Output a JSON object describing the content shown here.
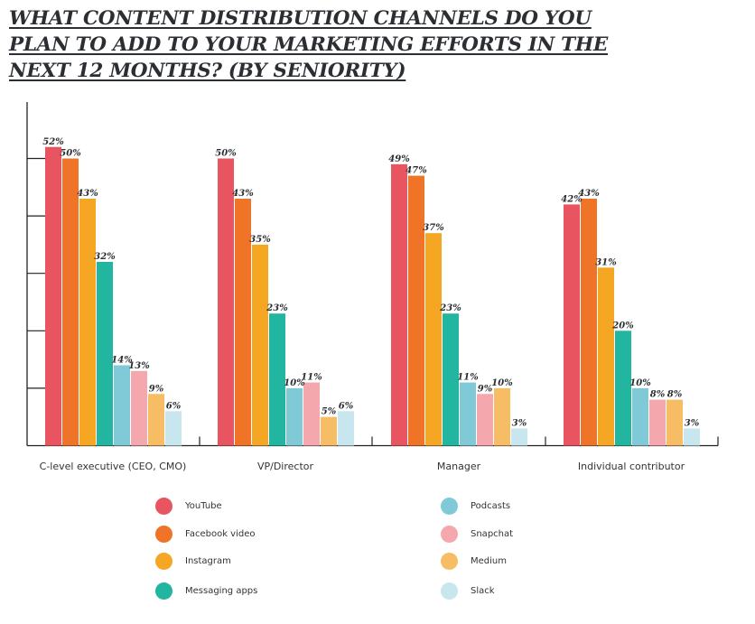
{
  "chart_data": {
    "type": "bar",
    "title_lines": [
      "WHAT CONTENT DISTRIBUTION CHANNELS DO YOU",
      "PLAN TO ADD TO YOUR MARKETING EFFORTS IN THE",
      "NEXT 12 MONTHS? (BY SENIORITY)"
    ],
    "categories": [
      "C-level executive (CEO, CMO)",
      "VP/Director",
      "Manager",
      "Individual contributor"
    ],
    "series": [
      {
        "name": "YouTube",
        "color": "#e85460",
        "values": [
          52,
          50,
          49,
          42
        ],
        "labels": [
          "52%",
          "50%",
          "49%",
          "42%"
        ]
      },
      {
        "name": "Facebook video",
        "color": "#f07427",
        "values": [
          50,
          43,
          47,
          43
        ],
        "labels": [
          "50%",
          "43%",
          "47%",
          "43%"
        ]
      },
      {
        "name": "Instagram",
        "color": "#f5a623",
        "values": [
          43,
          35,
          37,
          31
        ],
        "labels": [
          "43%",
          "35%",
          "37%",
          "31%"
        ]
      },
      {
        "name": "Messaging apps",
        "color": "#22b5a0",
        "values": [
          32,
          23,
          23,
          20
        ],
        "labels": [
          "32%",
          "23%",
          "23%",
          "20%"
        ]
      },
      {
        "name": "Podcasts",
        "color": "#80cad8",
        "values": [
          14,
          10,
          11,
          10
        ],
        "labels": [
          "14%",
          "10%",
          "11%",
          "10%"
        ]
      },
      {
        "name": "Snapchat",
        "color": "#f4a7ad",
        "values": [
          13,
          11,
          9,
          8
        ],
        "labels": [
          "13%",
          "11%",
          "9%",
          "8%"
        ]
      },
      {
        "name": "Medium",
        "color": "#f6bd65",
        "values": [
          9,
          5,
          10,
          8
        ],
        "labels": [
          "9%",
          "5%",
          "10%",
          "8%"
        ]
      },
      {
        "name": "Slack",
        "color": "#c7e6ee",
        "values": [
          6,
          6,
          3,
          3
        ],
        "labels": [
          "6%",
          "6%",
          "3%",
          "3%"
        ]
      }
    ],
    "ylim": [
      0,
      60
    ],
    "yticks": [
      0,
      10,
      20,
      30,
      40,
      50
    ],
    "xlabel": "",
    "ylabel": "",
    "grid": false,
    "legend_position": "bottom"
  }
}
